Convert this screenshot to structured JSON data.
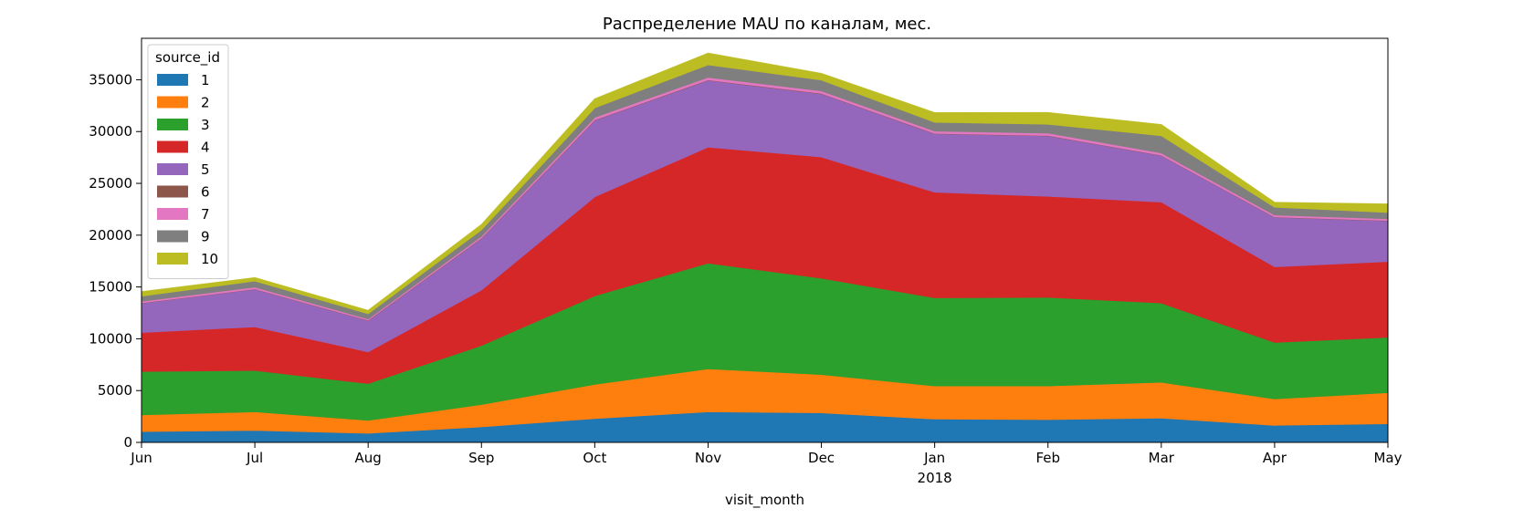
{
  "chart_data": {
    "type": "area",
    "stacked": true,
    "title": "Распределение MAU по каналам, мес.",
    "xlabel": "visit_month",
    "ylabel": "",
    "x": [
      "Jun",
      "Jul",
      "Aug",
      "Sep",
      "Oct",
      "Nov",
      "Dec",
      "Jan",
      "Feb",
      "Mar",
      "Apr",
      "May"
    ],
    "x_year_label": "2018",
    "x_year_label_under": "Jan",
    "ylim": [
      0,
      39000
    ],
    "yticks": [
      0,
      5000,
      10000,
      15000,
      20000,
      25000,
      30000,
      35000
    ],
    "grid": false,
    "legend": {
      "title": "source_id",
      "placement": "top-left"
    },
    "series": [
      {
        "name": "1",
        "color": "#1f77b4",
        "values": [
          1050,
          1150,
          880,
          1500,
          2300,
          2950,
          2850,
          2250,
          2200,
          2350,
          1650,
          1800
        ]
      },
      {
        "name": "2",
        "color": "#ff7f0e",
        "values": [
          1600,
          1800,
          1250,
          2150,
          3300,
          4150,
          3700,
          3200,
          3250,
          3450,
          2550,
          3000
        ]
      },
      {
        "name": "3",
        "color": "#2ca02c",
        "values": [
          4200,
          4000,
          3550,
          5700,
          8550,
          10200,
          9300,
          8500,
          8550,
          7650,
          5450,
          5350
        ]
      },
      {
        "name": "4",
        "color": "#d62728",
        "values": [
          3750,
          4200,
          3050,
          5350,
          9550,
          11200,
          11700,
          10200,
          9750,
          9750,
          7300,
          7300
        ]
      },
      {
        "name": "5",
        "color": "#9467bd",
        "values": [
          2850,
          3650,
          3050,
          5000,
          7400,
          6450,
          6100,
          5650,
          5850,
          4500,
          4800,
          3950
        ]
      },
      {
        "name": "6",
        "color": "#8c564b",
        "values": [
          15,
          15,
          10,
          20,
          30,
          35,
          30,
          25,
          25,
          25,
          15,
          15
        ]
      },
      {
        "name": "7",
        "color": "#e377c2",
        "values": [
          150,
          180,
          120,
          180,
          250,
          250,
          250,
          220,
          230,
          220,
          180,
          170
        ]
      },
      {
        "name": "9",
        "color": "#7f7f7f",
        "values": [
          500,
          580,
          500,
          600,
          900,
          1200,
          1050,
          850,
          850,
          1650,
          750,
          600
        ]
      },
      {
        "name": "10",
        "color": "#bcbd22",
        "values": [
          400,
          300,
          300,
          500,
          850,
          1100,
          600,
          900,
          1100,
          1050,
          450,
          800
        ]
      }
    ]
  }
}
